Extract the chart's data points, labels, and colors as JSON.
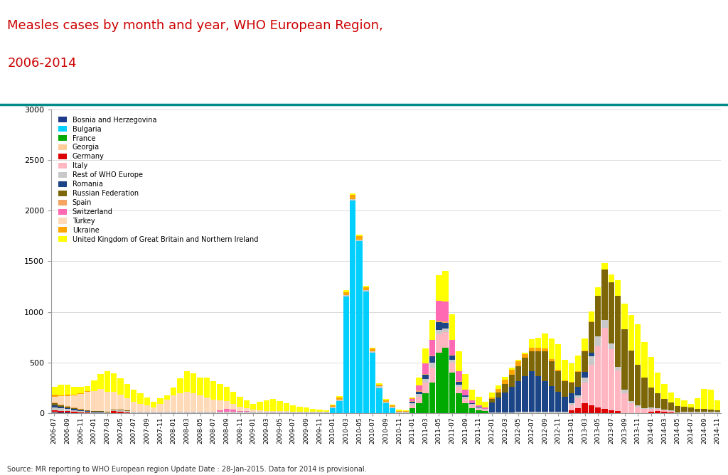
{
  "title_line1": "Measles cases by month and year, WHO European Region,",
  "title_line2": "2006-2014",
  "title_color": "#CC0000",
  "source_text": "Source: MR reporting to WHO European region Update Date : 28-Jan-2015. Data for 2014 is provisional.",
  "ylim": [
    0,
    3000
  ],
  "yticks": [
    0,
    500,
    1000,
    1500,
    2000,
    2500,
    3000
  ],
  "countries": [
    "Bosnia and Herzegovina",
    "Bulgaria",
    "France",
    "Georgia",
    "Germany",
    "Italy",
    "Rest of WHO Europe",
    "Romania",
    "Russian Federation",
    "Spain",
    "Switzerland",
    "Turkey",
    "Ukraine",
    "United Kingdom of Great Britain and Northern Ireland"
  ],
  "colors": [
    "#1F3A8A",
    "#00CFFF",
    "#00AA00",
    "#FFCC99",
    "#DD0000",
    "#FFB6C1",
    "#C8C8C8",
    "#1C4587",
    "#7D6608",
    "#F4A460",
    "#FF69B4",
    "#FFDAB9",
    "#FFA500",
    "#FFFF00"
  ]
}
